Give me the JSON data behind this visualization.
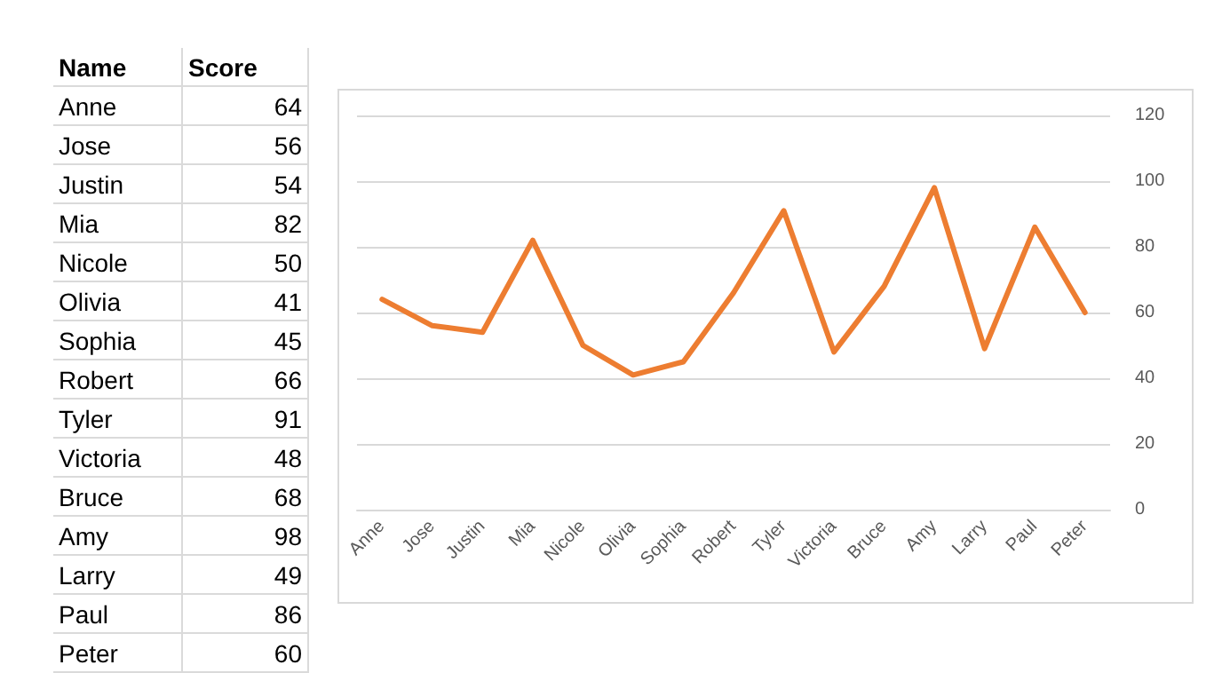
{
  "chart_data": [
    {
      "type": "other",
      "annotations": [
        "Name",
        "Score",
        "Anne",
        "64",
        "Jose",
        "56",
        "Justin",
        "54",
        "Mia",
        "82",
        "Nicole",
        "50",
        "Olivia",
        "41",
        "Sophia",
        "45",
        "Robert",
        "66",
        "Tyler",
        "91",
        "Victoria",
        "48",
        "Bruce",
        "68",
        "Amy",
        "98",
        "Larry",
        "49",
        "Paul",
        "86",
        "Peter",
        "60"
      ]
    },
    {
      "type": "line",
      "categories": [
        "Anne",
        "Jose",
        "Justin",
        "Mia",
        "Nicole",
        "Olivia",
        "Sophia",
        "Robert",
        "Tyler",
        "Victoria",
        "Bruce",
        "Amy",
        "Larry",
        "Paul",
        "Peter"
      ],
      "series": [
        {
          "color": "#ed7d31",
          "values": [
            64,
            56,
            54,
            82,
            50,
            41,
            45,
            66,
            91,
            48,
            68,
            98,
            49,
            86,
            60
          ]
        }
      ],
      "ylim": [
        0,
        120
      ],
      "yticks": [
        0,
        20,
        40,
        60,
        80,
        100,
        120
      ],
      "grid": "y",
      "marker": "none",
      "line_style": "solid"
    }
  ]
}
